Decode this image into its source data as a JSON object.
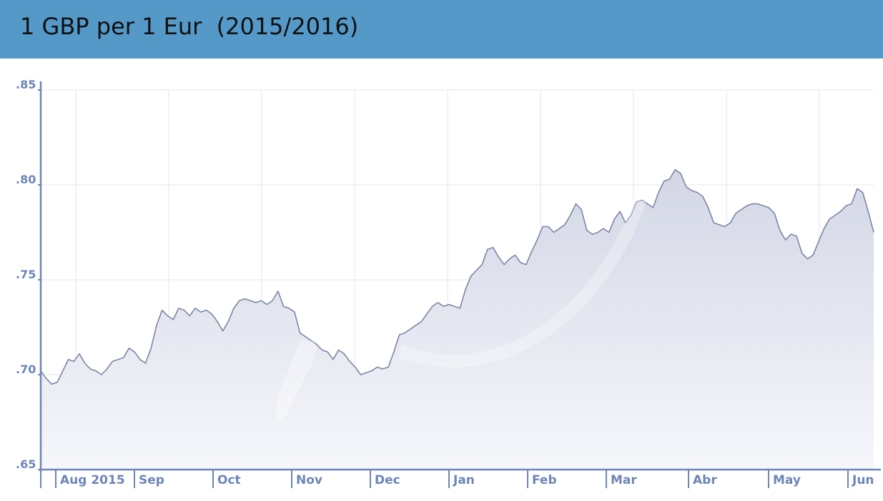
{
  "header": {
    "title": "1 GBP per 1 Eur  (2015/2016)",
    "background": "#5599c8"
  },
  "chart_data": {
    "type": "area",
    "title": "1 GBP per 1 Eur  (2015/2016)",
    "xlabel": "",
    "ylabel": "",
    "ylim": [
      0.65,
      0.85
    ],
    "yticks": [
      {
        "value": 0.85,
        "label": ".85"
      },
      {
        "value": 0.8,
        "label": ".80"
      },
      {
        "value": 0.75,
        "label": ".75"
      },
      {
        "value": 0.7,
        "label": ".70"
      },
      {
        "value": 0.65,
        "label": ".65"
      }
    ],
    "xticks": [
      "Aug 2015",
      "Sep",
      "Oct",
      "Nov",
      "Dec",
      "Jan",
      "Feb",
      "Mar",
      "Abr",
      "May",
      "Jun"
    ],
    "grid": true,
    "line_color": "#7d86a6",
    "fill_color": "#d8dbe8",
    "axis_color": "#6d86b8",
    "series": [
      {
        "values": [
          0.702,
          0.698,
          0.695,
          0.696,
          0.702,
          0.708,
          0.707,
          0.711,
          0.706,
          0.703,
          0.702,
          0.7,
          0.703,
          0.707,
          0.708,
          0.709,
          0.714,
          0.712,
          0.708,
          0.706,
          0.714,
          0.726,
          0.734,
          0.731,
          0.729,
          0.735,
          0.734,
          0.731,
          0.735,
          0.733,
          0.734,
          0.732,
          0.728,
          0.723,
          0.728,
          0.735,
          0.739,
          0.74,
          0.739,
          0.738,
          0.739,
          0.737,
          0.739,
          0.744,
          0.736,
          0.735,
          0.733,
          0.722,
          0.72,
          0.718,
          0.716,
          0.713,
          0.712,
          0.708,
          0.713,
          0.711,
          0.707,
          0.704,
          0.7,
          0.701,
          0.702,
          0.704,
          0.703,
          0.704,
          0.712,
          0.721,
          0.722,
          0.724,
          0.726,
          0.728,
          0.732,
          0.736,
          0.738,
          0.736,
          0.737,
          0.736,
          0.735,
          0.745,
          0.752,
          0.755,
          0.758,
          0.766,
          0.767,
          0.762,
          0.758,
          0.761,
          0.763,
          0.759,
          0.758,
          0.765,
          0.771,
          0.778,
          0.778,
          0.775,
          0.777,
          0.779,
          0.784,
          0.79,
          0.787,
          0.776,
          0.774,
          0.775,
          0.777,
          0.775,
          0.782,
          0.786,
          0.78,
          0.784,
          0.791,
          0.792,
          0.79,
          0.788,
          0.796,
          0.802,
          0.803,
          0.808,
          0.806,
          0.799,
          0.797,
          0.796,
          0.794,
          0.788,
          0.78,
          0.779,
          0.778,
          0.78,
          0.785,
          0.787,
          0.789,
          0.79,
          0.79,
          0.789,
          0.788,
          0.785,
          0.776,
          0.771,
          0.774,
          0.773,
          0.764,
          0.761,
          0.763,
          0.77,
          0.777,
          0.782,
          0.784,
          0.786,
          0.789,
          0.79,
          0.798,
          0.796,
          0.786,
          0.775
        ]
      }
    ]
  }
}
